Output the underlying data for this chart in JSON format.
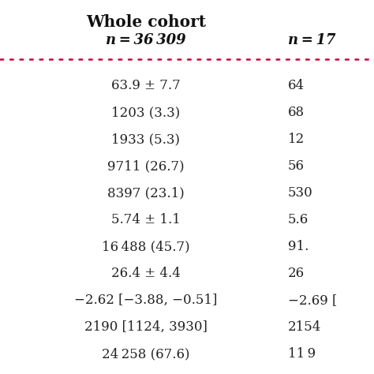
{
  "title": "Whole cohort",
  "col1_header": "n = 36 309",
  "col2_header": "n = 17",
  "col1_values": [
    "63.9 ± 7.7",
    "1203 (3.3)",
    "1933 (5.3)",
    "9711 (26.7)",
    "8397 (23.1)",
    "5.74 ± 1.1",
    "16 488 (45.7)",
    "26.4 ± 4.4",
    "−2.62 [−3.88, −0.51]",
    "2190 [1124, 3930]",
    "24 258 (67.6)"
  ],
  "col2_values": [
    "64",
    "68",
    "12",
    "56",
    "530",
    "5.6",
    "91.",
    "26",
    "−2.69 [",
    "2154",
    "11 9"
  ],
  "bg_color": "#ffffff",
  "text_color": "#222222",
  "header_color": "#111111",
  "divider_color": "#cc0033",
  "title_fontsize": 14.5,
  "header_fontsize": 13,
  "cell_fontsize": 12,
  "fig_width": 4.74,
  "fig_height": 4.74,
  "dpi": 100
}
